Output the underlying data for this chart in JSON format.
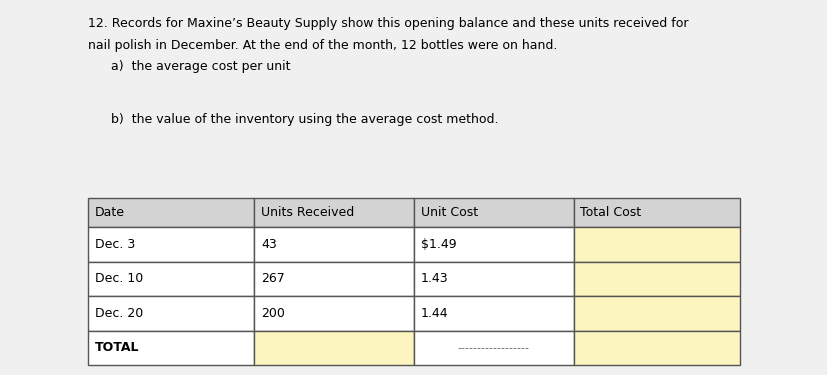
{
  "title_line1": "12. Records for Maxine’s Beauty Supply show this opening balance and these units received for",
  "title_line2": "nail polish in December. At the end of the month, 12 bottles were on hand.",
  "part_a": "a)  the average cost per unit",
  "part_b": "b)  the value of the inventory using the average cost method.",
  "col_headers": [
    "Date",
    "Units Received",
    "Unit Cost",
    "Total Cost"
  ],
  "rows": [
    [
      "Dec. 3",
      "43",
      "$1.49",
      ""
    ],
    [
      "Dec. 10",
      "267",
      "1.43",
      ""
    ],
    [
      "Dec. 20",
      "200",
      "1.44",
      ""
    ],
    [
      "TOTAL",
      "",
      "–––––––––––––––––",
      ""
    ]
  ],
  "header_bg": "#d3d3d3",
  "total_cost_bg": "#fdf5c0",
  "white_bg": "#ffffff",
  "border_color": "#555555",
  "text_color": "#000000",
  "background": "#f0f0f0",
  "font_size": 9.0,
  "table_font_size": 9.0,
  "dashed_text": "------------------"
}
